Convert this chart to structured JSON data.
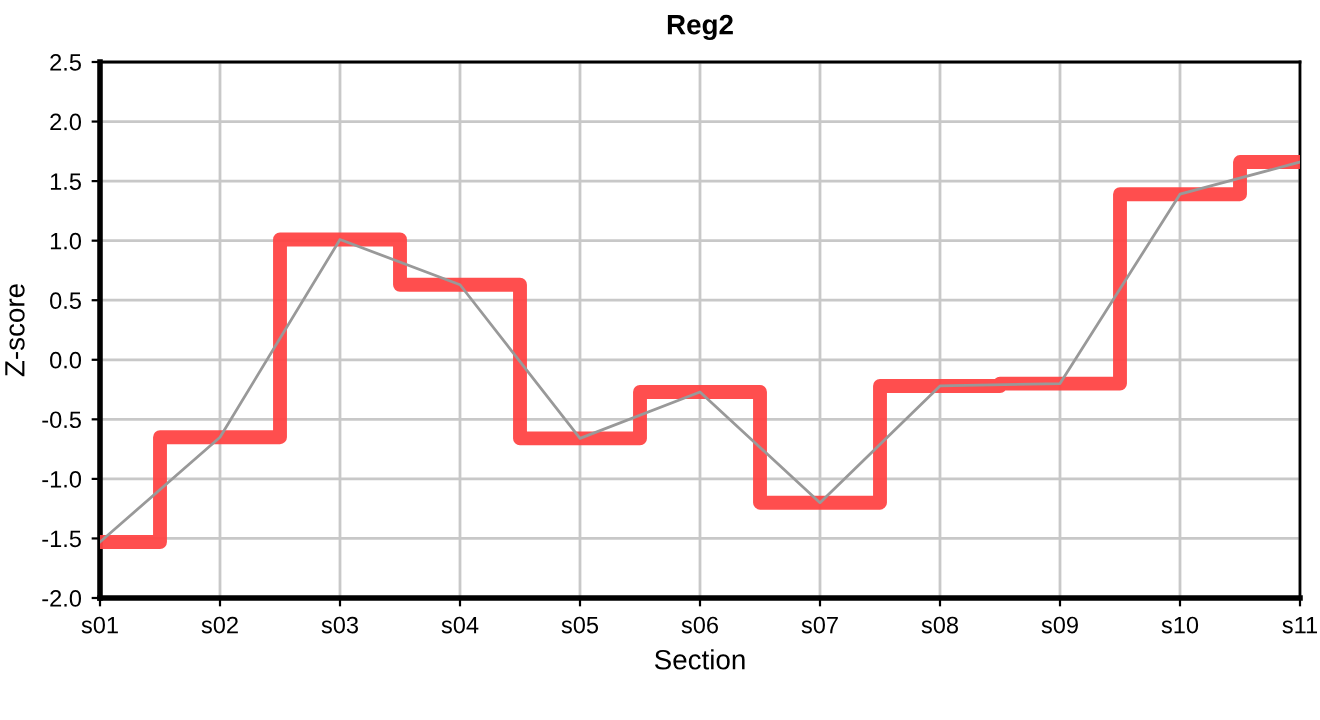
{
  "chart_data": {
    "type": "step",
    "title": "Reg2",
    "xlabel": "Section",
    "ylabel": "Z-score",
    "categories": [
      "s01",
      "s02",
      "s03",
      "s04",
      "s05",
      "s06",
      "s07",
      "s08",
      "s09",
      "s10",
      "s11"
    ],
    "series": [
      {
        "color": "#ff4444",
        "values": [
          -1.53,
          -0.65,
          1.01,
          0.63,
          -0.66,
          -0.27,
          -1.2,
          -0.22,
          -0.2,
          1.39,
          1.66
        ]
      },
      {
        "type": "line",
        "color": "#999999",
        "values": [
          -1.53,
          -0.65,
          1.01,
          0.63,
          -0.66,
          -0.27,
          -1.2,
          -0.22,
          -0.2,
          1.39,
          1.66
        ]
      }
    ],
    "ylim": [
      -2.0,
      2.5
    ],
    "yticks": [
      {
        "value": -2,
        "label": "-2.0"
      },
      -1.5,
      {
        "value": -1,
        "label": "-1.0"
      },
      -0.5,
      {
        "value": 0,
        "label": "0.0"
      },
      0.5,
      {
        "value": 1,
        "label": "1.0"
      },
      1.5,
      {
        "value": 2,
        "label": "2.0"
      },
      2.5
    ],
    "grid": true,
    "marker": "none",
    "line_style": "solid"
  }
}
